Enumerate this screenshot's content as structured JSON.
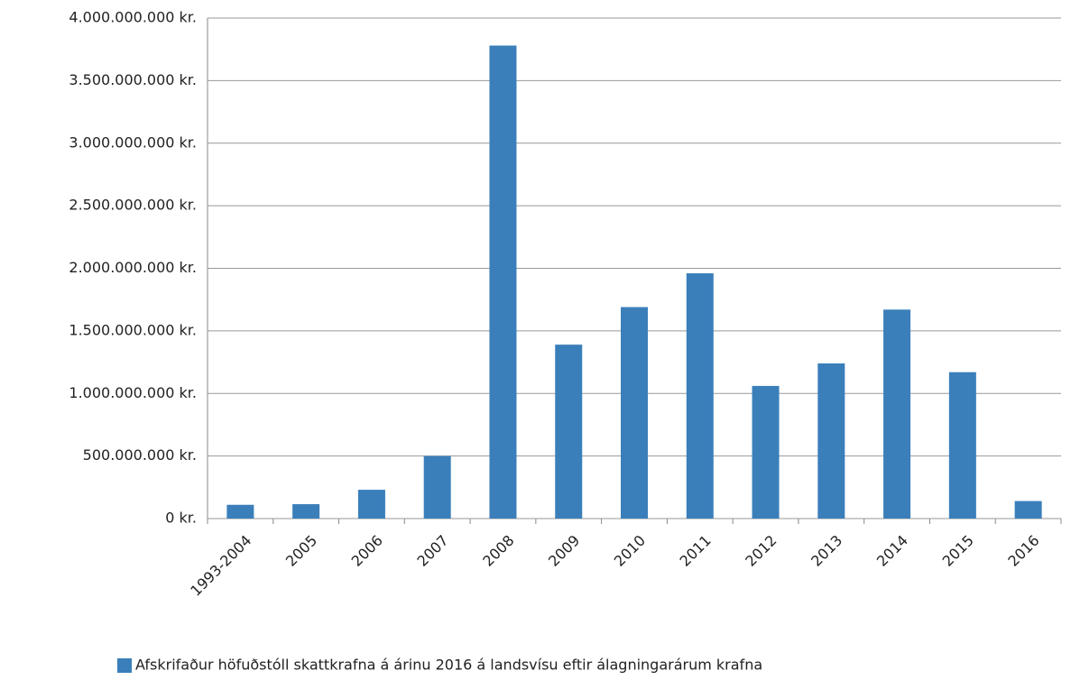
{
  "chart_data": {
    "type": "bar",
    "categories": [
      "1993-2004",
      "2005",
      "2006",
      "2007",
      "2008",
      "2009",
      "2010",
      "2011",
      "2012",
      "2013",
      "2014",
      "2015",
      "2016"
    ],
    "series": [
      {
        "name": "Afskrifaður höfuðstóll skattkrafna á árinu 2016 á landsvísu eftir álagningarárum krafna",
        "color": "#3a7fba",
        "values": [
          110000000,
          115000000,
          230000000,
          500000000,
          3780000000,
          1390000000,
          1690000000,
          1960000000,
          1060000000,
          1240000000,
          1670000000,
          1170000000,
          140000000
        ]
      }
    ],
    "ylim": [
      0,
      4000000000
    ],
    "yticks": [
      {
        "value": 0,
        "label": "0 kr."
      },
      {
        "value": 500000000,
        "label": "500.000.000 kr."
      },
      {
        "value": 1000000000,
        "label": "1.000.000.000 kr."
      },
      {
        "value": 1500000000,
        "label": "1.500.000.000 kr."
      },
      {
        "value": 2000000000,
        "label": "2.000.000.000 kr."
      },
      {
        "value": 2500000000,
        "label": "2.500.000.000 kr."
      },
      {
        "value": 3000000000,
        "label": "3.000.000.000 kr."
      },
      {
        "value": 3500000000,
        "label": "3.500.000.000 kr."
      },
      {
        "value": 4000000000,
        "label": "4.000.000.000 kr."
      }
    ],
    "grid": true,
    "legend": "bottom"
  }
}
